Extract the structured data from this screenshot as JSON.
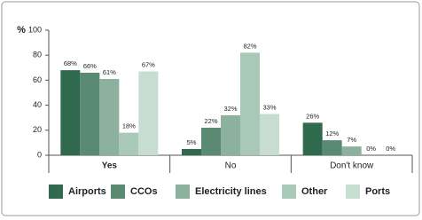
{
  "chart_data": {
    "type": "bar",
    "y_label": "%",
    "categories": [
      "Yes",
      "No",
      "Don't know"
    ],
    "series": [
      {
        "name": "Airports",
        "color": "#2f6a4f",
        "values": [
          68,
          5,
          26
        ],
        "value_labels": [
          "68%",
          "5%",
          "26%"
        ]
      },
      {
        "name": "CCOs",
        "color": "#5b8a72",
        "values": [
          66,
          22,
          12
        ],
        "value_labels": [
          "66%",
          "22%",
          "12%"
        ]
      },
      {
        "name": "Electricity lines",
        "color": "#8cb19e",
        "values": [
          61,
          32,
          7
        ],
        "value_labels": [
          "61%",
          "32%",
          "7%"
        ]
      },
      {
        "name": "Other",
        "color": "#a9c8b8",
        "values": [
          18,
          82,
          0
        ],
        "value_labels": [
          "18%",
          "82%",
          "0%"
        ]
      },
      {
        "name": "Ports",
        "color": "#c8ddd1",
        "values": [
          67,
          33,
          0
        ],
        "value_labels": [
          "67%",
          "33%",
          "0%"
        ]
      }
    ],
    "ylim": [
      0,
      100
    ],
    "yticks": [
      0,
      20,
      40,
      60,
      80,
      100
    ]
  }
}
